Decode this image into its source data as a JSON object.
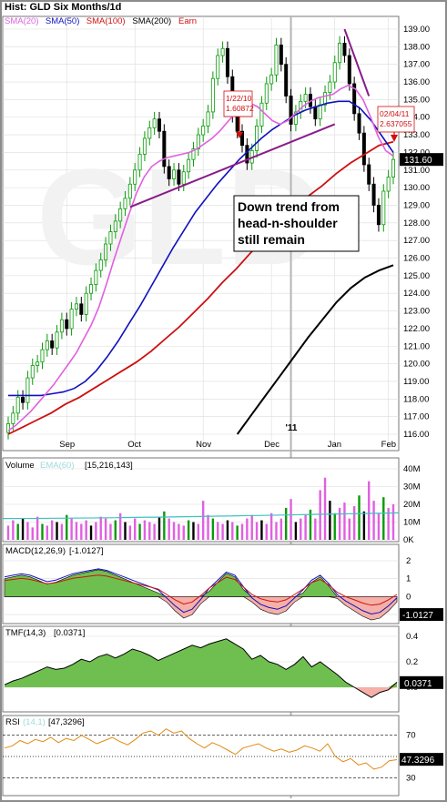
{
  "header": {
    "title": "Hist: GLD Six Months/1d",
    "legend": [
      {
        "label": "SMA(20)",
        "color": "#e060e0"
      },
      {
        "label": "SMA(50)",
        "color": "#1010c0"
      },
      {
        "label": "SMA(100)",
        "color": "#d01010"
      },
      {
        "label": "SMA(200)",
        "color": "#000000"
      },
      {
        "label": "Earn",
        "color": "#d01010"
      }
    ]
  },
  "chart_data": [
    {
      "type": "line",
      "panel": "price",
      "y_range": [
        116,
        139
      ],
      "y_ticks": [
        "139.00",
        "138.00",
        "137.00",
        "136.00",
        "135.00",
        "134.00",
        "133.00",
        "132.00",
        "131.00",
        "130.00",
        "129.00",
        "128.00",
        "127.00",
        "126.00",
        "125.00",
        "124.00",
        "123.00",
        "122.00",
        "121.00",
        "120.00",
        "119.00",
        "118.00",
        "117.00",
        "116.00"
      ],
      "x_labels": [
        "Sep",
        "Oct",
        "Nov",
        "Dec",
        "Jan",
        "Feb"
      ],
      "year_marker": "'11",
      "last_price_label": "131.60",
      "close": [
        116.6,
        117.2,
        118.1,
        117.8,
        119.2,
        119.9,
        120.1,
        120.8,
        121.3,
        120.9,
        121.8,
        122.5,
        122.0,
        123.1,
        123.4,
        122.8,
        124.0,
        124.5,
        125.3,
        125.9,
        126.8,
        127.5,
        128.1,
        128.8,
        129.4,
        130.2,
        131.0,
        131.9,
        132.8,
        133.4,
        133.9,
        133.2,
        131.2,
        130.5,
        131.0,
        130.2,
        130.9,
        131.6,
        132.2,
        133.0,
        133.5,
        134.3,
        136.2,
        137.5,
        137.9,
        136.3,
        134.1,
        133.2,
        132.4,
        131.4,
        132.1,
        133.5,
        134.8,
        135.9,
        136.4,
        138.1,
        137.0,
        135.2,
        133.6,
        134.3,
        134.9,
        135.3,
        134.6,
        133.9,
        134.7,
        135.4,
        136.0,
        137.1,
        138.2,
        137.5,
        135.9,
        134.2,
        133.1,
        131.3,
        130.2,
        129.0,
        127.9,
        129.8,
        130.6,
        131.6
      ],
      "sma20": [
        116.2,
        116.5,
        116.9,
        117.3,
        117.8,
        118.3,
        118.8,
        119.4,
        120.0,
        120.6,
        121.4,
        122.2,
        123.2,
        124.5,
        125.9,
        127.2,
        128.5,
        129.7,
        130.6,
        131.2,
        131.5,
        131.7,
        131.8,
        131.9,
        132.0,
        132.2,
        132.5,
        132.8,
        133.2,
        133.7,
        134.2,
        134.6,
        134.8,
        134.6,
        134.2,
        133.8,
        133.6,
        133.8,
        134.2,
        134.6,
        134.9,
        135.1,
        135.2,
        135.3,
        135.6,
        135.8,
        135.6,
        135.0,
        134.0,
        132.9,
        132.1,
        131.8
      ],
      "sma50_x0": 0,
      "sma50": [
        118.2,
        118.2,
        118.2,
        118.2,
        118.3,
        118.4,
        118.6,
        119.0,
        119.6,
        120.4,
        121.3,
        122.3,
        123.3,
        124.4,
        125.5,
        126.6,
        127.6,
        128.6,
        129.4,
        130.2,
        130.9,
        131.6,
        132.2,
        132.8,
        133.3,
        133.7,
        134.1,
        134.4,
        134.6,
        134.8,
        134.9,
        134.9,
        134.5,
        133.8,
        132.9,
        132.0
      ],
      "sma100": [
        116.0,
        116.4,
        116.8,
        117.2,
        117.7,
        118.1,
        118.6,
        119.1,
        119.6,
        120.1,
        120.7,
        121.4,
        122.1,
        122.9,
        123.7,
        124.6,
        125.4,
        126.3,
        127.1,
        127.9,
        128.7,
        129.5,
        130.1,
        130.8,
        131.4,
        131.9,
        132.4,
        132.6
      ],
      "sma200": [
        116.0,
        117.1,
        118.2,
        119.3,
        120.4,
        121.5,
        122.5,
        123.5,
        124.3,
        124.9,
        125.3,
        125.6
      ],
      "annotations": [
        {
          "date": "1/22/10",
          "value": "1.60872",
          "color": "#d01010"
        },
        {
          "date": "02/04/11",
          "value": "2.637055",
          "color": "#d01010"
        },
        {
          "text": "Down trend from head-n-shoulder still remain"
        }
      ]
    },
    {
      "type": "bar",
      "panel": "volume",
      "label": "Volume",
      "overlay_label": "EMA(60)",
      "overlay_value": "[15,216,143]",
      "y_ticks": [
        "40M",
        "30M",
        "20M",
        "10M",
        "0K"
      ],
      "values_m": [
        8,
        11,
        9,
        12,
        10,
        7,
        13,
        9,
        8,
        11,
        10,
        9,
        14,
        12,
        10,
        9,
        11,
        8,
        10,
        13,
        12,
        9,
        11,
        15,
        10,
        8,
        12,
        9,
        11,
        10,
        9,
        13,
        16,
        12,
        10,
        9,
        8,
        11,
        10,
        9,
        22,
        14,
        12,
        10,
        9,
        11,
        10,
        8,
        9,
        12,
        14,
        10,
        11,
        9,
        15,
        10,
        12,
        18,
        23,
        10,
        12,
        14,
        17,
        12,
        28,
        35,
        22,
        15,
        18,
        21,
        12,
        19,
        25,
        16,
        33,
        22,
        15,
        24,
        18,
        20
      ]
    },
    {
      "type": "area",
      "panel": "macd",
      "label": "MACD(12,26,9)",
      "value": "-1.0127",
      "y_ticks": [
        "2",
        "1",
        "0",
        "-1"
      ],
      "hist": [
        1.0,
        1.1,
        1.2,
        1.1,
        0.9,
        0.7,
        0.8,
        1.0,
        1.2,
        1.3,
        1.4,
        1.5,
        1.4,
        1.2,
        1.0,
        0.8,
        0.6,
        0.4,
        0.2,
        -0.3,
        -0.8,
        -1.2,
        -1.0,
        -0.4,
        0.3,
        0.8,
        1.3,
        1.1,
        0.4,
        -0.3,
        -0.7,
        -0.9,
        -1.0,
        -0.8,
        -0.3,
        0.2,
        0.8,
        1.1,
        0.6,
        -0.1,
        -0.5,
        -0.8,
        -1.1,
        -1.3,
        -1.2,
        -0.8,
        -0.3
      ]
    },
    {
      "type": "area",
      "panel": "tmf",
      "label": "TMF(14,3)",
      "value": "[0.0371]",
      "badge": "0.0371",
      "y_ticks": [
        "0.4",
        "0.2",
        "0.0"
      ],
      "values": [
        0.02,
        0.05,
        0.07,
        0.1,
        0.13,
        0.16,
        0.14,
        0.15,
        0.18,
        0.22,
        0.2,
        0.24,
        0.26,
        0.23,
        0.26,
        0.3,
        0.28,
        0.25,
        0.21,
        0.24,
        0.27,
        0.3,
        0.33,
        0.31,
        0.34,
        0.36,
        0.38,
        0.34,
        0.3,
        0.22,
        0.25,
        0.2,
        0.18,
        0.14,
        0.18,
        0.24,
        0.16,
        0.2,
        0.15,
        0.1,
        0.04,
        0.0,
        -0.04,
        -0.08,
        -0.04,
        -0.02,
        0.04
      ]
    },
    {
      "type": "line",
      "panel": "rsi",
      "label": "RSI(14,1)",
      "value": "[47,3296]",
      "badge": "47.3296",
      "y_ticks": [
        "70",
        "50",
        "30"
      ],
      "values": [
        58,
        60,
        65,
        62,
        66,
        64,
        68,
        63,
        67,
        65,
        70,
        66,
        62,
        65,
        68,
        64,
        61,
        66,
        72,
        74,
        70,
        76,
        72,
        74,
        67,
        62,
        58,
        63,
        60,
        56,
        52,
        58,
        60,
        62,
        58,
        55,
        57,
        54,
        56,
        60,
        58,
        55,
        62,
        50,
        45,
        48,
        42,
        44,
        38,
        40,
        46,
        47
      ]
    }
  ],
  "x_axis_labels": [
    "Sep",
    "Oct",
    "Nov",
    "Dec",
    "Jan",
    "Feb"
  ],
  "annotation_text_lines": [
    "Down trend from",
    "head-n-shoulder",
    "still remain"
  ],
  "price_box_1": {
    "date": "1/22/10",
    "value": "1.60872"
  },
  "price_box_2": {
    "date": "02/04/11",
    "value": "2.637055"
  },
  "last_price": "131.60",
  "year_label": "'11",
  "volume_panel": {
    "label": "Volume",
    "ema": "EMA(60)",
    "value": "[15,216,143]"
  },
  "macd_panel": {
    "label": "MACD(12,26,9)",
    "value": "[-1.0127]",
    "badge": "-1.0127"
  },
  "tmf_panel": {
    "label": "TMF(14,3)",
    "value": "[0.0371]",
    "badge": "0.0371"
  },
  "rsi_panel": {
    "label": "RSI",
    "params": "(14,1)",
    "value": "[47,3296]",
    "badge": "47.3296"
  }
}
